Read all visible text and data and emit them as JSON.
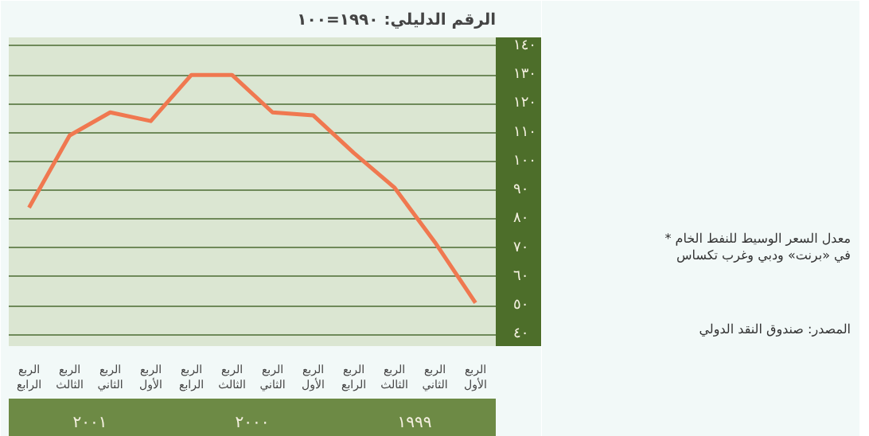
{
  "chart_data": {
    "type": "line",
    "title": "الرقم الدليلي: ١٩٩٠=١٠٠",
    "categories": [
      "الربع الرابع",
      "الربع الثالث",
      "الربع الثاني",
      "الربع الأول",
      "الربع الرابع",
      "الربع الثالث",
      "الربع الثاني",
      "الربع الأول",
      "الربع الرابع",
      "الربع الثالث",
      "الربع الثاني",
      "الربع الأول"
    ],
    "series": [
      {
        "color": "#f07850",
        "values": [
          84,
          109,
          117,
          114,
          130,
          130,
          117,
          116,
          103,
          91,
          72,
          51
        ]
      }
    ],
    "ylim": [
      36,
      143
    ],
    "yticks": [
      {
        "value": 40,
        "label": "٤٠"
      },
      {
        "value": 50,
        "label": "٥٠"
      },
      {
        "value": 60,
        "label": "٦٠"
      },
      {
        "value": 70,
        "label": "٧٠"
      },
      {
        "value": 80,
        "label": "٨٠"
      },
      {
        "value": 90,
        "label": "٩٠"
      },
      {
        "value": 100,
        "label": "١٠٠"
      },
      {
        "value": 110,
        "label": "١١٠"
      },
      {
        "value": 120,
        "label": "١٢٠"
      },
      {
        "value": 130,
        "label": "١٣٠"
      },
      {
        "value": 140,
        "label": "١٤٠"
      }
    ],
    "grid": "y",
    "marker": "none",
    "line_style": "solid",
    "annotations": [
      "٢٠٠١",
      "٢٠٠٠",
      "١٩٩٩",
      "* معدل السعر الوسيط للنفط الخام\nفي «برنت» ودبي وغرب تكساس",
      "المصدر: صندوق النقد الدولي"
    ]
  }
}
